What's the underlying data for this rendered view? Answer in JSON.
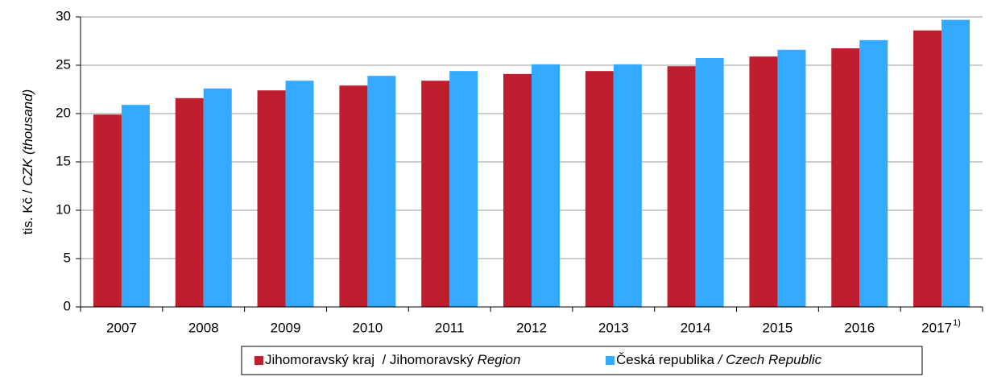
{
  "chart_data": {
    "type": "bar",
    "ylabel": [
      "tis. Kč / ",
      "CZK (thousand)"
    ],
    "categories": [
      "2007",
      "2008",
      "2009",
      "2010",
      "2011",
      "2012",
      "2013",
      "2014",
      "2015",
      "2016",
      "2017"
    ],
    "category_footnote": "1)",
    "series": [
      {
        "name": [
          "Jihomoravský kraj  / Jihomoravský ",
          "Region"
        ],
        "color": "#be1e2d",
        "values": [
          19.9,
          21.6,
          22.4,
          22.9,
          23.4,
          24.1,
          24.4,
          24.9,
          25.9,
          26.75,
          28.6
        ]
      },
      {
        "name": [
          "Česká republika ",
          "/ Czech Republic"
        ],
        "color": "#33aaff",
        "values": [
          20.9,
          22.6,
          23.4,
          23.9,
          24.4,
          25.1,
          25.1,
          25.75,
          26.6,
          27.6,
          29.7
        ]
      }
    ],
    "ylim": [
      0,
      30
    ],
    "yticks": [
      0,
      5,
      10,
      15,
      20,
      25,
      30
    ],
    "grid": true,
    "legend": "bottom"
  }
}
